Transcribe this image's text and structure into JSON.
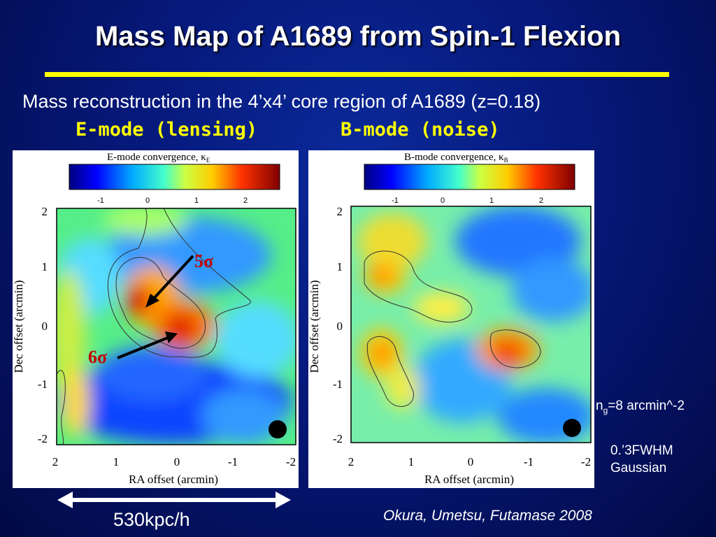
{
  "slide": {
    "title": "Mass Map of A1689 from Spin-1 Flexion",
    "subtitle": "Mass reconstruction in the 4’x4’ core region of A1689 (z=0.18)",
    "e_mode_label": "E-mode (lensing)",
    "b_mode_label": "B-mode (noise)",
    "sigma_5": "5σ",
    "sigma_6": "6σ",
    "ng_prefix": "n",
    "ng_sub": "g",
    "ng_suffix": "=8 arcmin^-2",
    "fwhm_line1": "0.’3FWHM",
    "fwhm_line2": "Gaussian",
    "scale_bar": "530kpc/h",
    "citation": "Okura, Umetsu, Futamase 2008"
  },
  "panels": {
    "e": {
      "colorbar_title": "E-mode convergence, κ",
      "colorbar_sub": "E"
    },
    "b": {
      "colorbar_title": "B-mode convergence, κ",
      "colorbar_sub": "B"
    },
    "colorbar_ticks": [
      "-1",
      "0",
      "1",
      "2"
    ],
    "x_ticks": [
      "2",
      "1",
      "0",
      "-1",
      "-2"
    ],
    "y_ticks": [
      "2",
      "1",
      "0",
      "-1",
      "-2"
    ],
    "x_label": "RA offset (arcmin)",
    "y_label": "Dec offset (arcmin)"
  },
  "colors": {
    "accent": "#ffff00",
    "sigma": "#c00000",
    "background": "#06187a"
  }
}
